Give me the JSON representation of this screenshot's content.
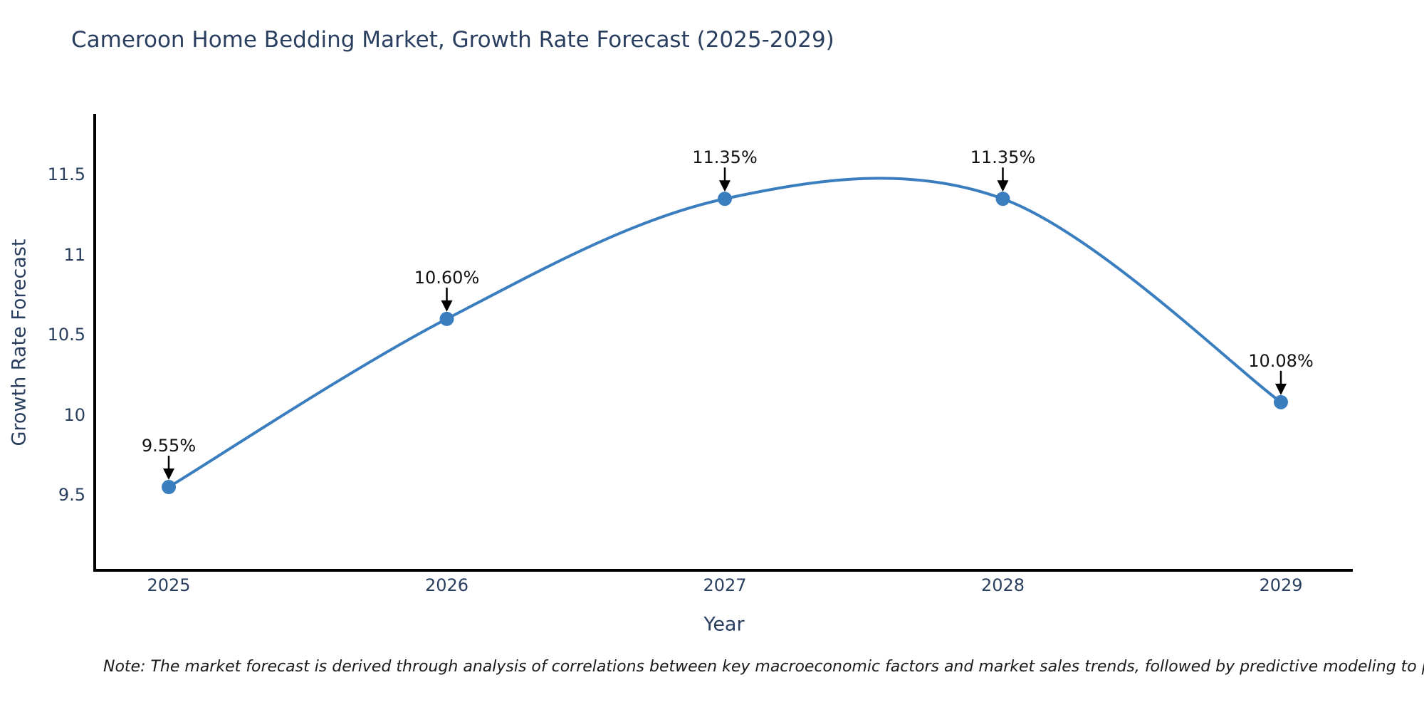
{
  "chart_data": {
    "type": "line",
    "line_shape": "spline",
    "title": "Cameroon Home Bedding Market, Growth Rate Forecast (2025-2029)",
    "xlabel": "Year",
    "ylabel": "Growth Rate Forecast",
    "x": [
      2025,
      2026,
      2027,
      2028,
      2029
    ],
    "values": [
      9.55,
      10.6,
      11.35,
      11.35,
      10.08
    ],
    "point_labels": [
      "9.55%",
      "10.60%",
      "11.35%",
      "11.35%",
      "10.08%"
    ],
    "xtick_labels": [
      "2025",
      "2026",
      "2027",
      "2028",
      "2029"
    ],
    "yticks": [
      9.5,
      10,
      10.5,
      11,
      11.5
    ],
    "ytick_labels": [
      "9.5",
      "10",
      "10.5",
      "11",
      "11.5"
    ],
    "ylim": [
      9.03,
      11.88
    ],
    "grid": false,
    "legend": "none",
    "colors": {
      "line": "#3a7ebf",
      "marker": "#3a7ebf",
      "axis": "#000000",
      "arrow": "#000000",
      "text": "#2a3f5f",
      "annotation_text": "#111111",
      "background": "#ffffff"
    },
    "note": "Note: The market forecast is derived through analysis of correlations between key macroeconomic factors and market sales trends, followed by predictive modeling to project future sal"
  }
}
